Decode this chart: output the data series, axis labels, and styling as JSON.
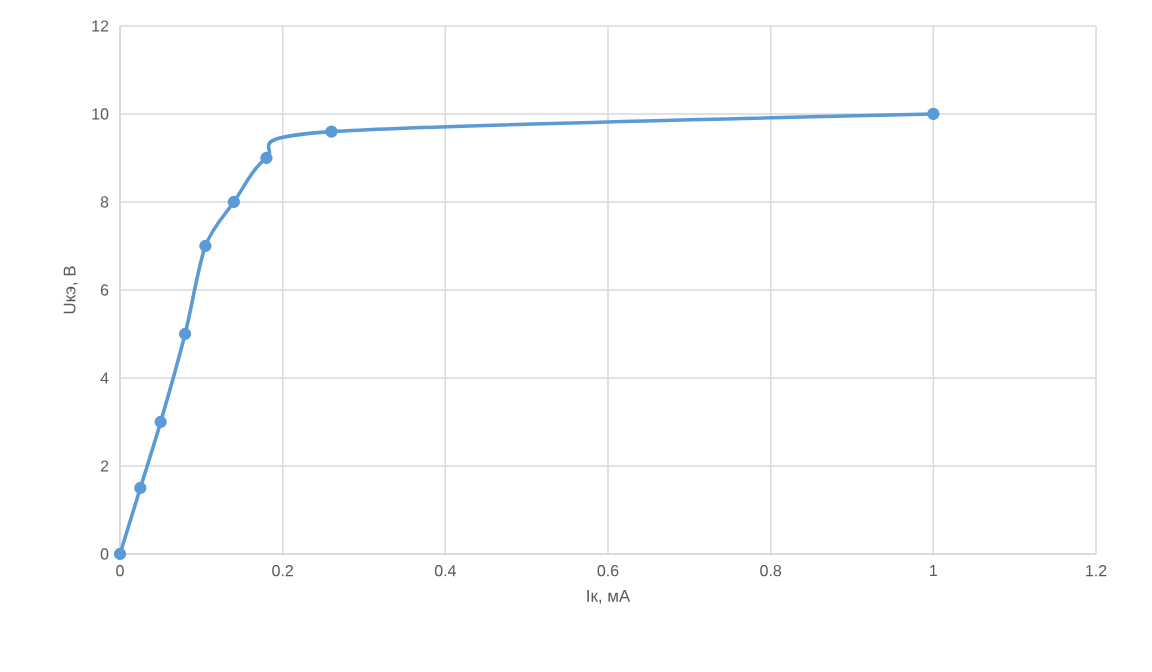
{
  "chart_data": {
    "type": "line",
    "xlabel": "Iк, мА",
    "ylabel": "Uкэ, В",
    "x": [
      0,
      0.025,
      0.05,
      0.08,
      0.105,
      0.14,
      0.18,
      0.26,
      1
    ],
    "series": [
      {
        "color": "#5b9bd5",
        "values": [
          0,
          1.5,
          3,
          5,
          7,
          8,
          9,
          9.6,
          10
        ]
      }
    ],
    "xlim": [
      0,
      1.2
    ],
    "xticks": [
      0,
      0.2,
      0.4,
      0.6,
      0.8,
      1,
      1.2
    ],
    "ylim": [
      0,
      12
    ],
    "yticks": [
      0,
      2,
      4,
      6,
      8,
      10,
      12
    ],
    "grid": true,
    "marker": "circle",
    "line_style": "solid"
  }
}
